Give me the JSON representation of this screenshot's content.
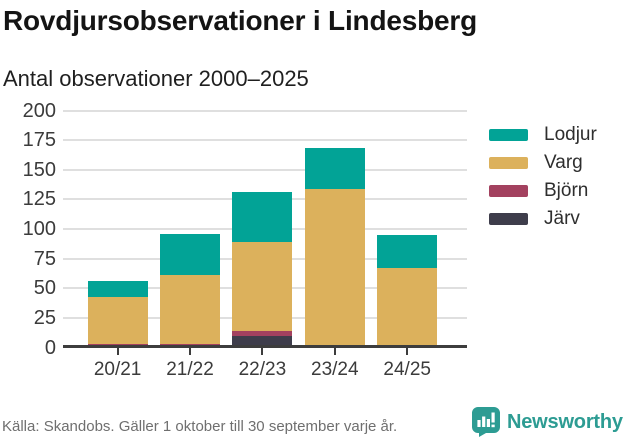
{
  "chart_data": {
    "type": "bar",
    "stacked": true,
    "title": "Rovdjursobservationer i Lindesberg",
    "subtitle": "Antal observationer 2000–2025",
    "categories": [
      "20/21",
      "21/22",
      "22/23",
      "23/24",
      "24/25"
    ],
    "series": [
      {
        "name": "Järv",
        "color": "#3e3d4b",
        "values": [
          0,
          0,
          10,
          0,
          0
        ]
      },
      {
        "name": "Björn",
        "color": "#a3415f",
        "values": [
          3,
          3,
          4,
          2,
          0
        ]
      },
      {
        "name": "Varg",
        "color": "#dcb15c",
        "values": [
          40,
          58,
          75,
          132,
          67
        ]
      },
      {
        "name": "Lodjur",
        "color": "#02a396",
        "values": [
          13,
          35,
          42,
          34,
          28
        ]
      }
    ],
    "totals": [
      56,
      96,
      131,
      168,
      95
    ],
    "legend_order": [
      "Lodjur",
      "Varg",
      "Björn",
      "Järv"
    ],
    "legend_position": "right",
    "xlabel": "",
    "ylabel": "",
    "ylim": [
      0,
      200
    ],
    "yticks": [
      0,
      25,
      50,
      75,
      100,
      125,
      150,
      175,
      200
    ],
    "grid": true
  },
  "source_note": "Källa: Skandobs. Gäller 1 oktober till 30 september varje år.",
  "branding": {
    "name": "Newsworthy",
    "icon": "newsworthy-logo",
    "color": "#2d9c93"
  },
  "colors": {
    "axis": "#3d3d3d",
    "gridline": "#dfdfdf",
    "text": "#3b3b3b",
    "muted": "#6f6f6f",
    "background": "#ffffff",
    "title": "#141414"
  }
}
